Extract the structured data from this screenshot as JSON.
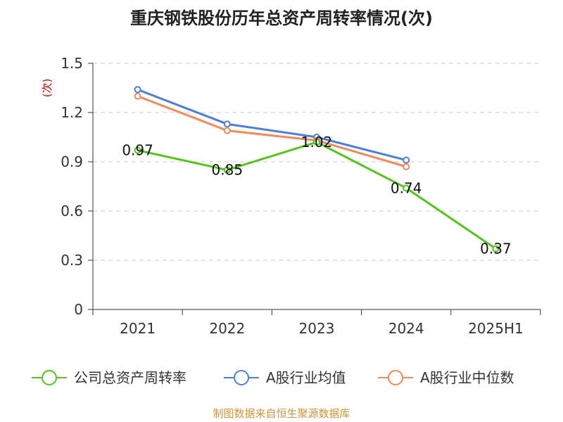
{
  "chart_data": {
    "type": "line",
    "title": "重庆钢铁股份历年总资产周转率情况(次)",
    "ylabel": "(次)",
    "categories": [
      "2021",
      "2022",
      "2023",
      "2024",
      "2025H1"
    ],
    "yticks": [
      "0",
      "0.3",
      "0.6",
      "0.9",
      "1.2",
      "1.5"
    ],
    "ylim": [
      0,
      1.5
    ],
    "grid": true,
    "legend_position": "bottom",
    "series": [
      {
        "name": "公司总资产周转率",
        "color": "#52c41a",
        "values": [
          0.97,
          0.85,
          1.02,
          0.74,
          0.37
        ],
        "labels": [
          "0.97",
          "0.85",
          "1.02",
          "0.74",
          "0.37"
        ]
      },
      {
        "name": "A股行业均值",
        "color": "#4a7fe0",
        "values": [
          1.34,
          1.13,
          1.05,
          0.91,
          null
        ]
      },
      {
        "name": "A股行业中位数",
        "color": "#f5895a",
        "values": [
          1.3,
          1.09,
          1.03,
          0.87,
          null
        ]
      }
    ],
    "source": "制图数据来自恒生聚源数据库"
  }
}
